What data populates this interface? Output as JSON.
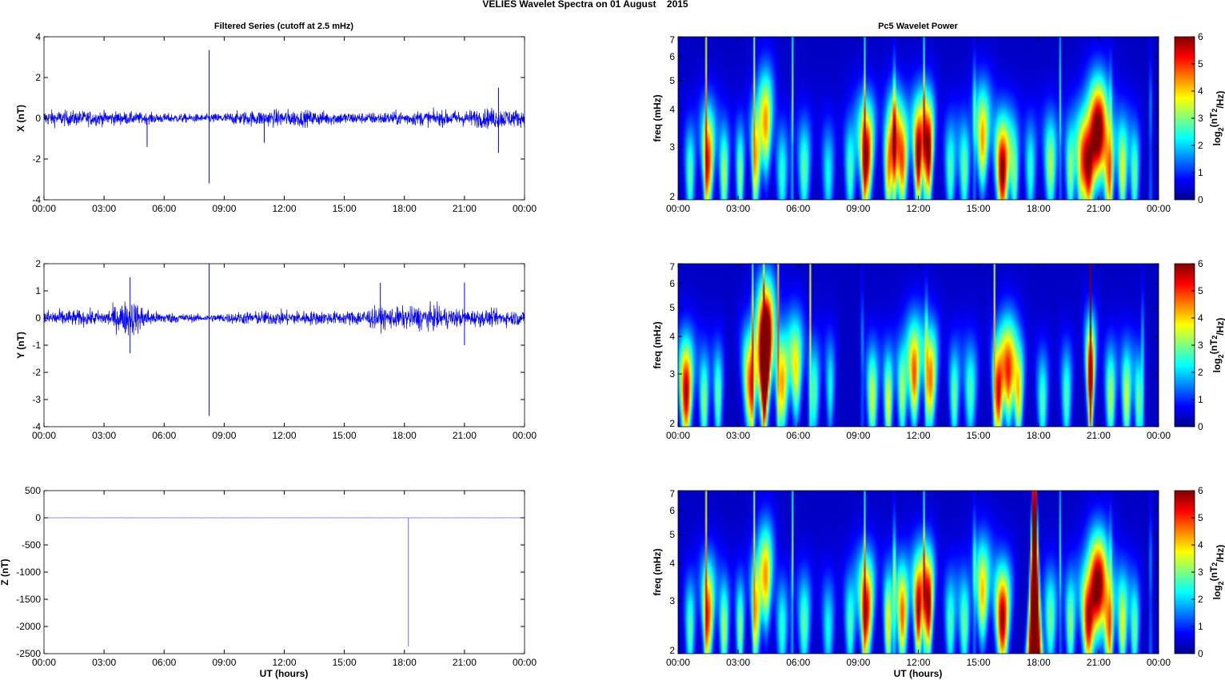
{
  "figure": {
    "title": "VELIES Wavelet Spectra on 01 August    2015",
    "left_title": "Filtered Series (cutoff at 2.5 mHz)",
    "right_title": "Pc5 Wavelet Power",
    "x_label": "UT (hours)"
  },
  "chart_data": [
    {
      "type": "line",
      "name": "X component filtered series",
      "ylabel": "X (nT)",
      "ylim": [
        -4,
        4
      ],
      "yticks": [
        -4,
        -2,
        0,
        2,
        4
      ],
      "xlim": [
        0,
        24
      ],
      "xticks": [
        "00:00",
        "03:00",
        "06:00",
        "09:00",
        "12:00",
        "15:00",
        "18:00",
        "21:00",
        "00:00"
      ],
      "color": "#0000ff",
      "noise_envelope": [
        [
          0,
          0.5
        ],
        [
          3,
          0.45
        ],
        [
          6,
          0.3
        ],
        [
          8,
          0.25
        ],
        [
          10,
          0.45
        ],
        [
          12,
          0.55
        ],
        [
          14,
          0.45
        ],
        [
          16,
          0.35
        ],
        [
          18,
          0.45
        ],
        [
          21,
          0.5
        ],
        [
          22.5,
          0.65
        ],
        [
          24,
          0.5
        ]
      ],
      "spikes": [
        [
          8.25,
          3.35
        ],
        [
          8.25,
          -3.2
        ],
        [
          5.15,
          -1.4
        ],
        [
          22.7,
          -1.7
        ],
        [
          22.7,
          1.5
        ],
        [
          11.0,
          -1.2
        ]
      ]
    },
    {
      "type": "line",
      "name": "Y component filtered series",
      "ylabel": "Y (nT)",
      "ylim": [
        -4,
        2
      ],
      "yticks": [
        -4,
        -3,
        -2,
        -1,
        0,
        1,
        2
      ],
      "xlim": [
        0,
        24
      ],
      "xticks": [
        "00:00",
        "03:00",
        "06:00",
        "09:00",
        "12:00",
        "15:00",
        "18:00",
        "21:00",
        "00:00"
      ],
      "color": "#0000ff",
      "noise_envelope": [
        [
          0,
          0.4
        ],
        [
          3,
          0.35
        ],
        [
          4.3,
          0.9
        ],
        [
          5.5,
          0.3
        ],
        [
          8,
          0.15
        ],
        [
          10,
          0.3
        ],
        [
          12,
          0.35
        ],
        [
          15,
          0.3
        ],
        [
          16.5,
          0.5
        ],
        [
          18,
          0.5
        ],
        [
          19,
          0.6
        ],
        [
          21,
          0.4
        ],
        [
          24,
          0.35
        ]
      ],
      "spikes": [
        [
          8.25,
          2.0
        ],
        [
          8.25,
          -3.6
        ],
        [
          4.3,
          1.5
        ],
        [
          4.3,
          -1.3
        ],
        [
          16.8,
          1.3
        ],
        [
          21.0,
          1.3
        ],
        [
          21.0,
          -1.0
        ]
      ]
    },
    {
      "type": "line",
      "name": "Z component filtered series",
      "ylabel": "Z (nT)",
      "ylim": [
        -2500,
        500
      ],
      "yticks": [
        -2500,
        -2000,
        -1500,
        -1000,
        -500,
        0,
        500
      ],
      "xlim": [
        0,
        24
      ],
      "xticks": [
        "00:00",
        "03:00",
        "06:00",
        "09:00",
        "12:00",
        "15:00",
        "18:00",
        "21:00",
        "00:00"
      ],
      "color": "#6f6fff",
      "noise_envelope": [
        [
          0,
          2
        ],
        [
          24,
          2
        ]
      ],
      "spikes": [
        [
          18.2,
          0
        ],
        [
          18.2,
          -2370
        ]
      ]
    },
    {
      "type": "heatmap",
      "name": "X Pc5 wavelet power",
      "ylabel": "freq (mHz)",
      "yscale": "log",
      "ylim": [
        2,
        7
      ],
      "yticks": [
        2,
        3,
        4,
        5,
        6,
        7
      ],
      "xlim": [
        0,
        24
      ],
      "xticks": [
        "00:00",
        "03:00",
        "06:00",
        "09:00",
        "12:00",
        "15:00",
        "18:00",
        "21:00",
        "00:00"
      ],
      "colorbar_label": "log2(nT^2/Hz)",
      "clim": [
        0,
        6
      ],
      "clim_ticks": [
        0,
        1,
        2,
        3,
        4,
        5,
        6
      ],
      "blobs": [
        [
          0.6,
          2.4,
          0.17,
          2.5
        ],
        [
          1.5,
          2.7,
          0.18,
          4.8
        ],
        [
          2.3,
          2.4,
          0.16,
          3.0
        ],
        [
          3.1,
          2.4,
          0.14,
          2.8
        ],
        [
          3.9,
          2.8,
          0.15,
          3.8
        ],
        [
          4.4,
          3.6,
          0.14,
          3.8
        ],
        [
          5.2,
          2.4,
          0.2,
          2.2
        ],
        [
          6.3,
          2.5,
          0.2,
          2.5
        ],
        [
          7.5,
          2.4,
          0.2,
          2.0
        ],
        [
          8.6,
          2.5,
          0.18,
          2.4
        ],
        [
          9.4,
          2.8,
          0.2,
          5.6
        ],
        [
          10.5,
          2.5,
          0.14,
          3.8
        ],
        [
          10.8,
          3.0,
          0.14,
          3.2
        ],
        [
          11.2,
          2.7,
          0.18,
          4.5
        ],
        [
          12.0,
          2.8,
          0.14,
          5.9
        ],
        [
          12.5,
          2.9,
          0.14,
          5.9
        ],
        [
          13.6,
          2.5,
          0.18,
          2.4
        ],
        [
          14.3,
          2.5,
          0.18,
          2.6
        ],
        [
          15.2,
          3.2,
          0.17,
          4.0
        ],
        [
          16.2,
          2.5,
          0.22,
          5.8
        ],
        [
          16.8,
          2.4,
          0.15,
          2.6
        ],
        [
          17.6,
          2.5,
          0.18,
          2.2
        ],
        [
          18.6,
          2.6,
          0.2,
          3.0
        ],
        [
          19.6,
          2.5,
          0.17,
          2.8
        ],
        [
          20.1,
          2.4,
          0.15,
          2.6
        ],
        [
          20.5,
          2.6,
          0.22,
          5.6
        ],
        [
          21.0,
          3.4,
          0.18,
          5.0
        ],
        [
          21.5,
          2.5,
          0.18,
          4.2
        ],
        [
          22.2,
          2.5,
          0.16,
          3.4
        ],
        [
          22.8,
          2.4,
          0.16,
          2.6
        ]
      ],
      "streaks": [
        [
          1.4,
          3.2
        ],
        [
          3.8,
          2.6
        ],
        [
          5.7,
          3.5
        ],
        [
          9.3,
          3.4
        ],
        [
          10.8,
          3.8
        ],
        [
          12.3,
          3.2
        ],
        [
          14.8,
          2.8
        ],
        [
          19.1,
          2.6
        ],
        [
          21.6,
          2.4
        ],
        [
          23.6,
          2.8
        ]
      ]
    },
    {
      "type": "heatmap",
      "name": "Y Pc5 wavelet power",
      "ylabel": "freq (mHz)",
      "yscale": "log",
      "ylim": [
        2,
        7
      ],
      "yticks": [
        2,
        3,
        4,
        5,
        6,
        7
      ],
      "xlim": [
        0,
        24
      ],
      "xticks": [
        "00:00",
        "03:00",
        "06:00",
        "09:00",
        "12:00",
        "15:00",
        "18:00",
        "21:00",
        "00:00"
      ],
      "colorbar_label": "log2(nT^2/Hz)",
      "clim": [
        0,
        6
      ],
      "clim_ticks": [
        0,
        1,
        2,
        3,
        4,
        5,
        6
      ],
      "blobs": [
        [
          0.4,
          2.6,
          0.2,
          5.5
        ],
        [
          1.3,
          2.4,
          0.16,
          2.8
        ],
        [
          2.0,
          2.5,
          0.15,
          2.6
        ],
        [
          3.6,
          2.8,
          0.2,
          4.5
        ],
        [
          4.3,
          2.9,
          0.16,
          6.0
        ],
        [
          4.4,
          4.2,
          0.14,
          5.0
        ],
        [
          5.2,
          2.8,
          0.2,
          4.0
        ],
        [
          5.9,
          3.1,
          0.16,
          3.5
        ],
        [
          6.8,
          2.6,
          0.17,
          2.4
        ],
        [
          7.6,
          2.7,
          0.14,
          2.0
        ],
        [
          9.7,
          2.5,
          0.18,
          3.2
        ],
        [
          10.5,
          2.4,
          0.15,
          3.4
        ],
        [
          11.2,
          2.6,
          0.16,
          3.0
        ],
        [
          11.8,
          3.0,
          0.16,
          4.5
        ],
        [
          12.6,
          2.9,
          0.18,
          4.3
        ],
        [
          13.8,
          2.5,
          0.16,
          2.6
        ],
        [
          14.6,
          2.6,
          0.2,
          2.4
        ],
        [
          16.0,
          2.6,
          0.16,
          5.2
        ],
        [
          16.5,
          3.0,
          0.16,
          4.5
        ],
        [
          17.0,
          2.6,
          0.16,
          3.8
        ],
        [
          18.2,
          2.4,
          0.18,
          2.4
        ],
        [
          19.4,
          2.5,
          0.17,
          2.4
        ],
        [
          20.6,
          3.0,
          0.12,
          5.5
        ],
        [
          21.6,
          2.5,
          0.17,
          3.0
        ],
        [
          22.4,
          2.5,
          0.16,
          3.2
        ],
        [
          23.0,
          2.4,
          0.15,
          2.6
        ]
      ],
      "streaks": [
        [
          3.7,
          3.6
        ],
        [
          4.3,
          3.6
        ],
        [
          5.0,
          3.2
        ],
        [
          6.6,
          3.2
        ],
        [
          9.2,
          2.4
        ],
        [
          12.4,
          2.8
        ],
        [
          15.8,
          3.0
        ],
        [
          20.6,
          5.6
        ],
        [
          23.2,
          2.6
        ]
      ]
    },
    {
      "type": "heatmap",
      "name": "Z Pc5 wavelet power",
      "ylabel": "freq (mHz)",
      "yscale": "log",
      "ylim": [
        2,
        7
      ],
      "yticks": [
        2,
        3,
        4,
        5,
        6,
        7
      ],
      "xlim": [
        0,
        24
      ],
      "xticks": [
        "00:00",
        "03:00",
        "06:00",
        "09:00",
        "12:00",
        "15:00",
        "18:00",
        "21:00",
        "00:00"
      ],
      "colorbar_label": "log2(nT^2/Hz)",
      "clim": [
        0,
        6
      ],
      "clim_ticks": [
        0,
        1,
        2,
        3,
        4,
        5,
        6
      ],
      "blobs": [
        [
          0.6,
          2.4,
          0.17,
          2.5
        ],
        [
          1.5,
          2.7,
          0.18,
          4.6
        ],
        [
          2.3,
          2.4,
          0.16,
          3.0
        ],
        [
          3.1,
          2.4,
          0.14,
          2.8
        ],
        [
          3.9,
          2.8,
          0.15,
          3.8
        ],
        [
          4.4,
          3.6,
          0.14,
          3.8
        ],
        [
          5.2,
          2.4,
          0.2,
          2.2
        ],
        [
          6.3,
          2.5,
          0.2,
          2.5
        ],
        [
          7.5,
          2.4,
          0.2,
          2.0
        ],
        [
          8.6,
          2.5,
          0.18,
          2.4
        ],
        [
          9.4,
          2.8,
          0.2,
          5.2
        ],
        [
          10.5,
          2.5,
          0.14,
          3.6
        ],
        [
          11.2,
          2.7,
          0.18,
          4.4
        ],
        [
          12.0,
          2.8,
          0.14,
          5.5
        ],
        [
          12.5,
          2.9,
          0.14,
          5.7
        ],
        [
          13.6,
          2.5,
          0.18,
          2.4
        ],
        [
          14.3,
          2.5,
          0.18,
          2.6
        ],
        [
          15.2,
          3.2,
          0.17,
          3.8
        ],
        [
          16.2,
          2.6,
          0.22,
          5.6
        ],
        [
          18.6,
          2.6,
          0.2,
          2.6
        ],
        [
          19.6,
          2.5,
          0.17,
          2.8
        ],
        [
          20.5,
          2.6,
          0.22,
          5.4
        ],
        [
          21.0,
          3.4,
          0.18,
          4.8
        ],
        [
          21.5,
          2.5,
          0.18,
          4.2
        ],
        [
          22.2,
          2.5,
          0.16,
          3.4
        ],
        [
          22.8,
          2.4,
          0.16,
          2.6
        ]
      ],
      "columns": [
        [
          17.8,
          0.28,
          7.0
        ]
      ],
      "streaks": [
        [
          1.4,
          3.2
        ],
        [
          3.8,
          2.6
        ],
        [
          5.7,
          3.5
        ],
        [
          9.3,
          3.4
        ],
        [
          10.8,
          3.8
        ],
        [
          12.3,
          3.2
        ],
        [
          14.8,
          2.8
        ],
        [
          19.1,
          2.6
        ],
        [
          21.6,
          2.4
        ],
        [
          23.6,
          2.8
        ]
      ]
    }
  ],
  "colormap": [
    "#00008f",
    "#0000ff",
    "#0080ff",
    "#00ffff",
    "#80ff80",
    "#ffff00",
    "#ff8000",
    "#ff0000",
    "#800000"
  ]
}
